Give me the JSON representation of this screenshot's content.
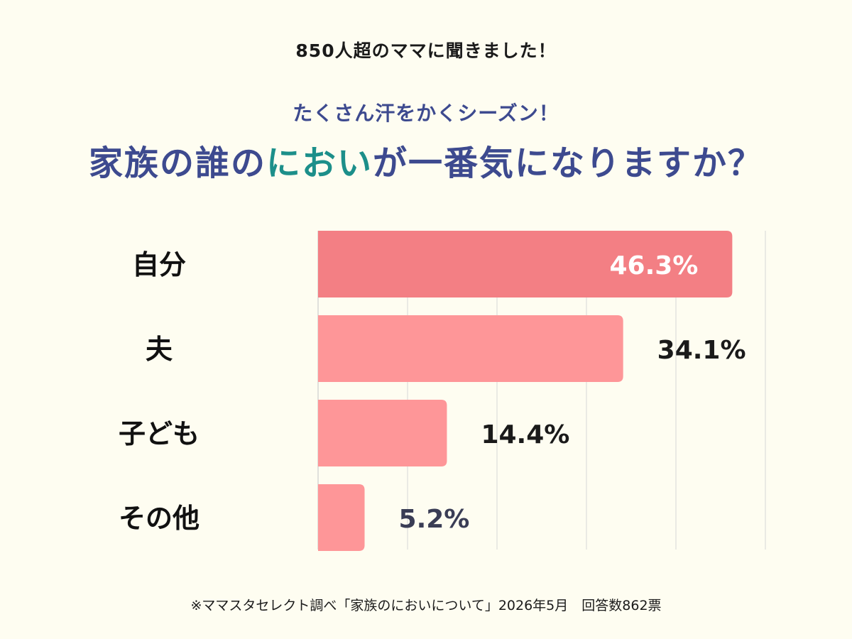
{
  "header": {
    "top_note": "850人超のママに聞きました！",
    "subtitle": "たくさん汗をかくシーズン！",
    "title_part1": "家族の誰の",
    "title_highlight": "におい",
    "title_part2": "が一番気になりますか？"
  },
  "chart_data": {
    "type": "bar",
    "orientation": "horizontal",
    "categories": [
      "自分",
      "夫",
      "子ども",
      "その他"
    ],
    "values": [
      46.3,
      34.1,
      14.4,
      5.2
    ],
    "value_labels": [
      "46.3%",
      "34.1%",
      "14.4%",
      "5.2%"
    ],
    "unit": "%",
    "xlim": [
      0,
      50
    ],
    "grid": true,
    "colors": {
      "top_bar": "#f37f84",
      "bar": "#fe9698",
      "label_inside": "#ffffff",
      "label_outside": "#1a1a1a",
      "label_small": "#3a3d55",
      "grid": "#d6d6d6"
    }
  },
  "footer": {
    "note": "※ママスタセレクト調べ「家族のにおいについて」2026年5月　回答数862票"
  }
}
